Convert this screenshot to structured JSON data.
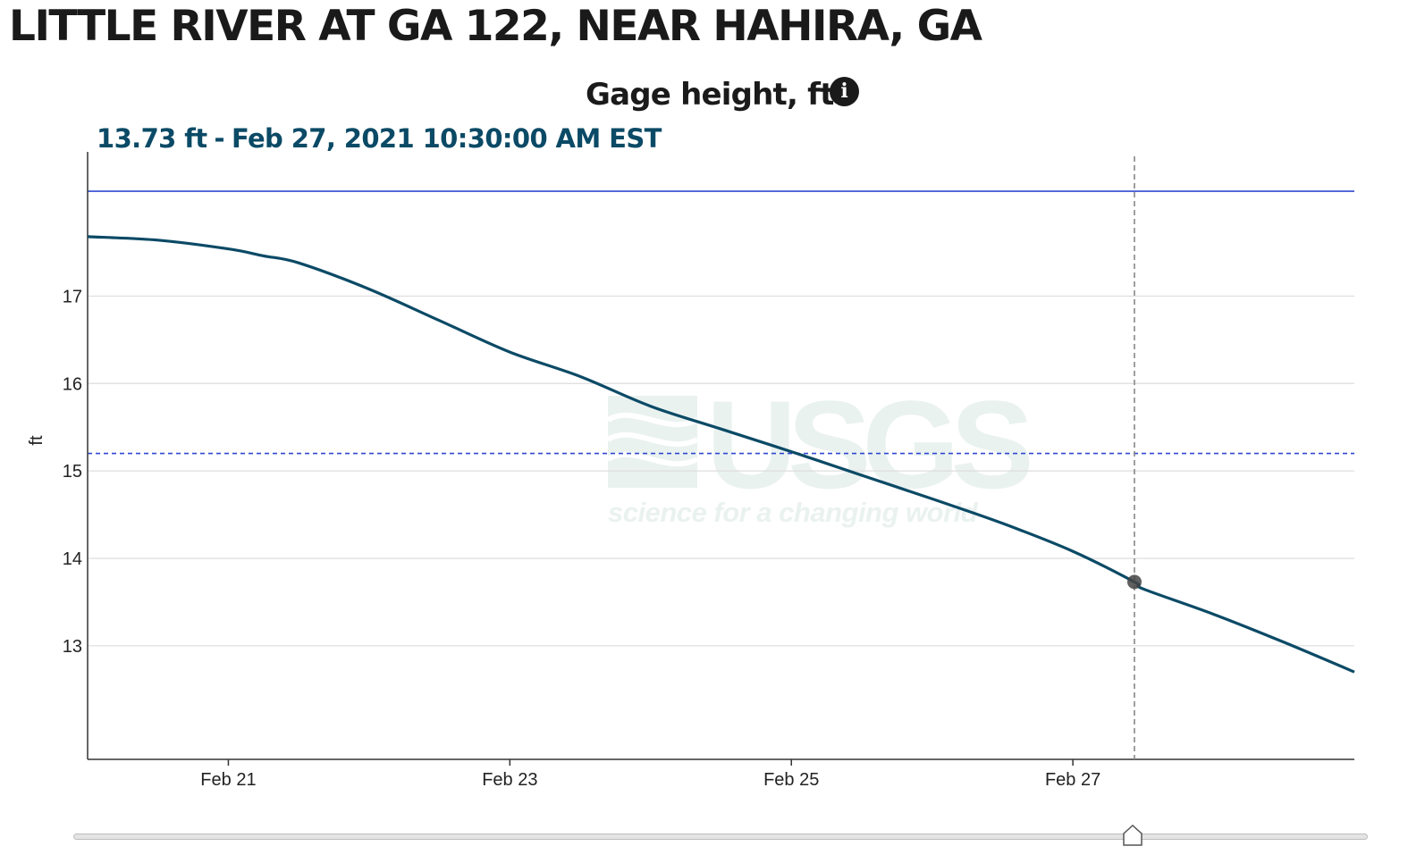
{
  "page": {
    "site_title": "LITTLE RIVER AT GA 122, NEAR HAHIRA, GA",
    "info_icon": "info-icon",
    "watermark_brand": "USGS",
    "watermark_tagline": "science for a changing world"
  },
  "tooltip": {
    "value": "13.73 ft",
    "separator": "-",
    "datetime": "Feb 27, 2021 10:30:00 AM EST"
  },
  "colors": {
    "series": "#0b4a66",
    "reference_line": "#2f49d1",
    "grid": "#dddddd",
    "cursor": "#888888",
    "watermark": "#eaf2f0"
  },
  "chart_data": {
    "type": "line",
    "title": "Gage height, ft",
    "xlabel": "",
    "ylabel": "ft",
    "xlim": [
      "2021-02-20T00:00",
      "2021-02-29T00:00"
    ],
    "ylim": [
      11.7,
      18.65
    ],
    "x_ticks": [
      "Feb 21",
      "Feb 23",
      "Feb 25",
      "Feb 27"
    ],
    "y_ticks": [
      13,
      14,
      15,
      16,
      17
    ],
    "grid": "horizontal",
    "series": [
      {
        "x": [
          "2021-02-20T00:00",
          "2021-02-20T12:00",
          "2021-02-21T00:00",
          "2021-02-21T06:00",
          "2021-02-21T12:00",
          "2021-02-22T00:00",
          "2021-02-22T12:00",
          "2021-02-23T00:00",
          "2021-02-23T12:00",
          "2021-02-24T00:00",
          "2021-02-24T12:00",
          "2021-02-25T00:00",
          "2021-02-25T12:00",
          "2021-02-26T00:00",
          "2021-02-26T12:00",
          "2021-02-27T00:00",
          "2021-02-27T10:30",
          "2021-02-27T12:00",
          "2021-02-28T00:00",
          "2021-02-28T12:00",
          "2021-02-29T00:00"
        ],
        "values": [
          17.68,
          17.64,
          17.54,
          17.46,
          17.38,
          17.08,
          16.72,
          16.36,
          16.08,
          15.74,
          15.48,
          15.22,
          14.95,
          14.68,
          14.4,
          14.08,
          13.73,
          13.65,
          13.36,
          13.04,
          12.7
        ]
      }
    ],
    "reference_lines": [
      {
        "y": 18.2,
        "style": "solid"
      },
      {
        "y": 15.2,
        "style": "dashed"
      }
    ],
    "cursor": {
      "x": "2021-02-27T10:30",
      "y": 13.73
    }
  }
}
